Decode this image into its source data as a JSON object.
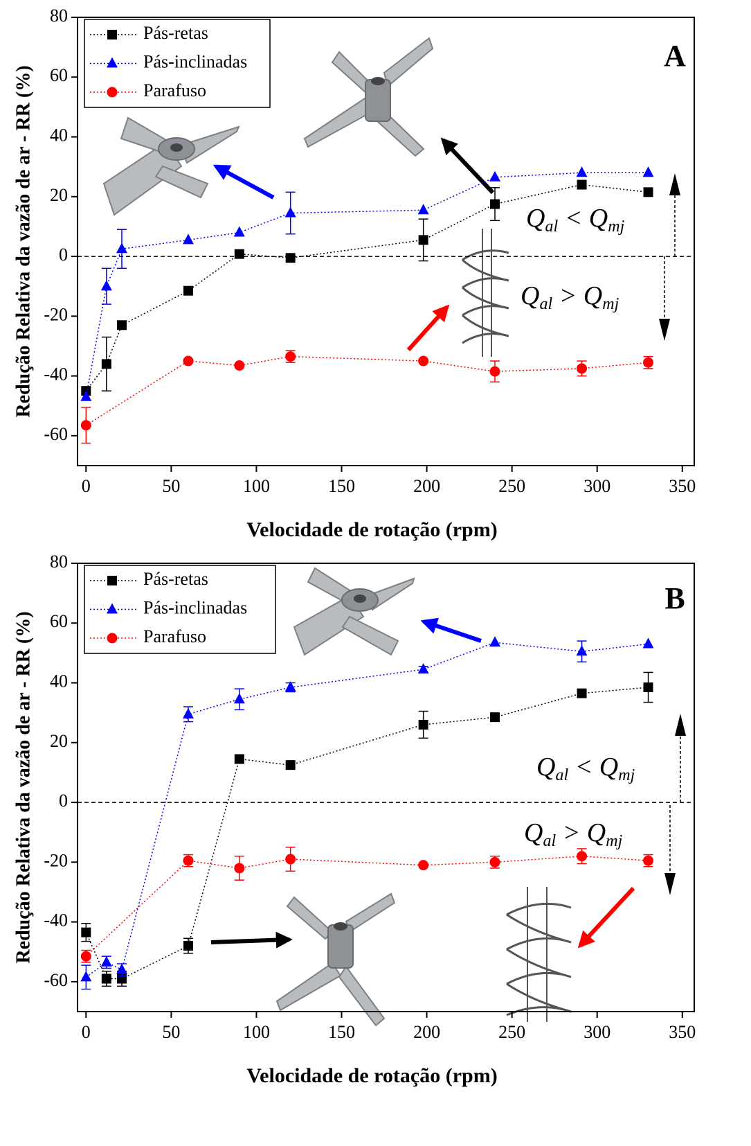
{
  "chart_data": [
    {
      "type": "line",
      "panel_label": "A",
      "xlabel": "Velocidade de rotação (rpm)",
      "ylabel": "Redução Relativa da vazão de ar - RR (%)",
      "xlim": [
        -5,
        357
      ],
      "ylim": [
        -70,
        80
      ],
      "xticks": [
        0,
        50,
        100,
        150,
        200,
        250,
        300,
        350
      ],
      "yticks": [
        -60,
        -40,
        -20,
        0,
        20,
        40,
        60,
        80
      ],
      "hline": 0,
      "legend": "upper left",
      "series": [
        {
          "name": "Pás-retas",
          "color": "#000000",
          "marker": "square",
          "x": [
            0,
            12,
            21,
            60,
            90,
            120,
            198,
            240,
            291,
            330
          ],
          "values": [
            -45,
            -36,
            -23,
            -11.5,
            0.8,
            -0.5,
            5.5,
            17.5,
            24,
            21.5
          ],
          "errors": [
            null,
            9,
            null,
            null,
            null,
            null,
            7,
            5.5,
            null,
            null
          ]
        },
        {
          "name": "Pás-inclinadas",
          "color": "#0000ff",
          "marker": "triangle",
          "x": [
            0,
            12,
            21,
            60,
            90,
            120,
            198,
            240,
            291,
            330
          ],
          "values": [
            -47,
            -10,
            2.5,
            5.5,
            8,
            14.5,
            15.5,
            26.5,
            28,
            28
          ],
          "errors": [
            null,
            6,
            6.5,
            null,
            null,
            7,
            null,
            null,
            null,
            null
          ]
        },
        {
          "name": "Parafuso",
          "color": "#ff0000",
          "marker": "circle",
          "x": [
            0,
            60,
            90,
            120,
            198,
            240,
            291,
            330
          ],
          "values": [
            -56.5,
            -35,
            -36.5,
            -33.5,
            -35,
            -38.5,
            -37.5,
            -35.5
          ],
          "errors": [
            6,
            null,
            null,
            2,
            null,
            3.5,
            2.5,
            2
          ]
        }
      ],
      "annotations": [
        [
          {
            "text": "Q"
          },
          {
            "text": "al",
            "sub": true
          },
          {
            "text": " < "
          },
          {
            "text": "Q"
          },
          {
            "text": "mj",
            "sub": true
          }
        ],
        [
          {
            "text": "Q"
          },
          {
            "text": "al",
            "sub": true
          },
          {
            "text": " > "
          },
          {
            "text": "Q"
          },
          {
            "text": "mj",
            "sub": true
          }
        ]
      ]
    },
    {
      "type": "line",
      "panel_label": "B",
      "xlabel": "Velocidade de rotação (rpm)",
      "ylabel": "Redução Relativa da vazão de ar - RR (%)",
      "xlim": [
        -5,
        357
      ],
      "ylim": [
        -70,
        80
      ],
      "xticks": [
        0,
        50,
        100,
        150,
        200,
        250,
        300,
        350
      ],
      "yticks": [
        -60,
        -40,
        -20,
        0,
        20,
        40,
        60,
        80
      ],
      "hline": 0,
      "legend": "upper left",
      "series": [
        {
          "name": "Pás-retas",
          "color": "#000000",
          "marker": "square",
          "x": [
            0,
            12,
            21,
            60,
            90,
            120,
            198,
            240,
            291,
            330
          ],
          "values": [
            -43.5,
            -59,
            -59,
            -48,
            14.5,
            12.5,
            26,
            28.5,
            36.5,
            38.5
          ],
          "errors": [
            3,
            2.5,
            2.5,
            2.5,
            null,
            null,
            4.5,
            null,
            null,
            5
          ]
        },
        {
          "name": "Pás-inclinadas",
          "color": "#0000ff",
          "marker": "triangle",
          "x": [
            0,
            12,
            21,
            60,
            90,
            120,
            198,
            240,
            291,
            330
          ],
          "values": [
            -58.5,
            -53.5,
            -56,
            29.5,
            34.5,
            38.5,
            44.5,
            53.5,
            50.5,
            53
          ],
          "errors": [
            4,
            2,
            2,
            2.5,
            3.5,
            1.5,
            1,
            null,
            3.5,
            null
          ]
        },
        {
          "name": "Parafuso",
          "color": "#ff0000",
          "marker": "circle",
          "x": [
            0,
            60,
            90,
            120,
            198,
            240,
            291,
            330
          ],
          "values": [
            -51.5,
            -19.5,
            -22,
            -19,
            -21,
            -20,
            -18,
            -19.5
          ],
          "errors": [
            2,
            2,
            4,
            4,
            null,
            2,
            2.5,
            2
          ]
        }
      ],
      "annotations": [
        [
          {
            "text": "Q"
          },
          {
            "text": "al",
            "sub": true
          },
          {
            "text": " < "
          },
          {
            "text": "Q"
          },
          {
            "text": "mj",
            "sub": true
          }
        ],
        [
          {
            "text": "Q"
          },
          {
            "text": "al",
            "sub": true
          },
          {
            "text": " > "
          },
          {
            "text": "Q"
          },
          {
            "text": "mj",
            "sub": true
          }
        ]
      ]
    }
  ]
}
